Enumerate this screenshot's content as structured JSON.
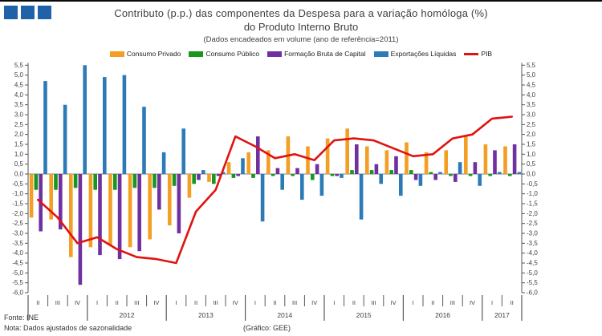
{
  "page": {
    "title_line1": "Contributo (p.p.) das componentes da Despesa para a variação homóloga (%)",
    "title_line2": "do Produto Interno Bruto",
    "subtitle": "(Dados encadeados em volume (ano de referência=2011)",
    "logo_color": "#2062A8",
    "footer": {
      "fonte": "Fonte: INE",
      "nota": "Nota: Dados ajustados de sazonalidade",
      "grafico": "(Gráfico: GEE)"
    }
  },
  "chart_data": {
    "type": "bar",
    "subtype": "grouped-bar-with-line",
    "title": "Contributo (p.p.) das componentes da Despesa para a variação homóloga (%) do Produto Interno Bruto",
    "legend_position": "top",
    "grid": "zero-line-only",
    "categories": [
      "II",
      "III",
      "IV",
      "I",
      "II",
      "III",
      "IV",
      "I",
      "II",
      "III",
      "IV",
      "I",
      "II",
      "III",
      "IV",
      "I",
      "II",
      "III",
      "IV",
      "I",
      "II",
      "III",
      "IV",
      "I",
      "II"
    ],
    "year_groups": [
      {
        "label": "",
        "span": 3
      },
      {
        "label": "2012",
        "span": 4
      },
      {
        "label": "2013",
        "span": 4
      },
      {
        "label": "2014",
        "span": 4
      },
      {
        "label": "2015",
        "span": 4
      },
      {
        "label": "2016",
        "span": 4
      },
      {
        "label": "2017",
        "span": 2
      }
    ],
    "y_axis": {
      "min": -6.0,
      "max": 5.5,
      "step": 0.5,
      "tick_labels": [
        "5,5",
        "5,0",
        "4,5",
        "4,0",
        "3,5",
        "3,0",
        "2,5",
        "2,0",
        "1,5",
        "1,0",
        "0,5",
        "0,0",
        "-0,5",
        "-1,0",
        "-1,5",
        "-2,0",
        "-2,5",
        "-3,0",
        "-3,5",
        "-4,0",
        "-4,5",
        "-5,0",
        "-5,5",
        "-6,0"
      ]
    },
    "series": [
      {
        "name": "Consumo Privado",
        "color": "#F49E23",
        "values": [
          -2.2,
          -2.3,
          -4.2,
          -3.7,
          -3.6,
          -3.7,
          -3.3,
          -2.6,
          -1.2,
          -0.4,
          0.6,
          1.1,
          1.2,
          1.9,
          1.4,
          1.8,
          2.3,
          1.4,
          1.2,
          1.6,
          1.1,
          1.2,
          1.9,
          1.5,
          1.4
        ]
      },
      {
        "name": "Consumo Público",
        "color": "#18961E",
        "values": [
          -0.8,
          -0.8,
          -0.7,
          -0.8,
          -0.8,
          -0.7,
          -0.7,
          -0.6,
          -0.5,
          -0.5,
          -0.2,
          -0.2,
          -0.1,
          -0.1,
          -0.3,
          -0.1,
          0.2,
          0.2,
          0.2,
          0.2,
          0.1,
          -0.1,
          -0.1,
          -0.1,
          -0.1
        ]
      },
      {
        "name": "Formação Bruta de Capital",
        "color": "#7030A0",
        "values": [
          -2.9,
          -2.8,
          -5.6,
          -4.1,
          -4.3,
          -3.9,
          -1.8,
          -3.0,
          -0.3,
          -0.1,
          -0.1,
          1.9,
          0.3,
          0.3,
          0.5,
          -0.1,
          1.5,
          0.5,
          0.9,
          -0.3,
          -0.3,
          -0.4,
          0.6,
          1.2,
          1.5
        ]
      },
      {
        "name": "Exportações Líquidas",
        "color": "#2D7BB6",
        "values": [
          4.7,
          3.5,
          5.5,
          4.9,
          5.0,
          3.4,
          1.1,
          2.3,
          0.2,
          0.1,
          0.8,
          -2.4,
          -0.8,
          -1.3,
          -1.1,
          -0.2,
          -2.3,
          -0.5,
          -1.1,
          -0.6,
          0.1,
          0.6,
          -0.6,
          0.1,
          0.1
        ]
      }
    ],
    "line_series": {
      "name": "PIB",
      "color": "#E01212",
      "values": [
        -1.3,
        -2.2,
        -3.5,
        -3.2,
        -3.8,
        -4.2,
        -4.3,
        -4.5,
        -1.9,
        -0.8,
        1.9,
        1.4,
        0.8,
        1.0,
        0.7,
        1.7,
        1.8,
        1.7,
        1.3,
        0.9,
        1.0,
        1.8,
        2.0,
        2.8,
        2.9
      ]
    }
  }
}
